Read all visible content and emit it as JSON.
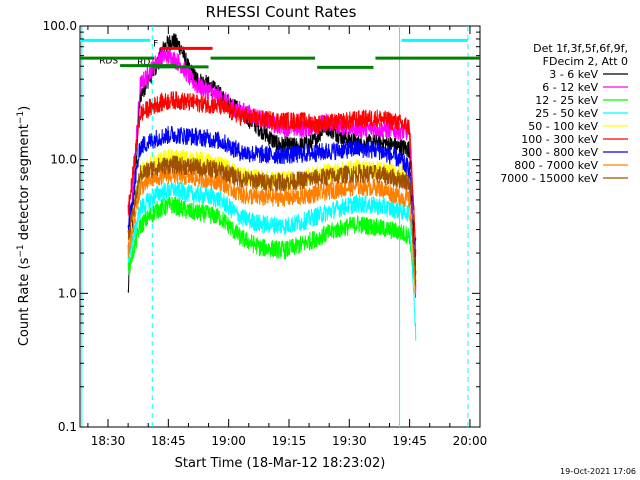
{
  "chart_data": {
    "type": "line",
    "title": "RHESSI Count Rates",
    "xlabel": "Start Time (18-Mar-12 18:23:02)",
    "ylabel_parts": [
      "Count Rate (s",
      "−1",
      " detector segment",
      "−1",
      ")"
    ],
    "y_scale": "log",
    "ylim": [
      0.1,
      100.0
    ],
    "xlim": [
      "18:23:02",
      "20:02:30"
    ],
    "x_ticks": [
      "18:30",
      "18:45",
      "19:00",
      "19:15",
      "19:30",
      "19:45",
      "20:00"
    ],
    "y_ticks": [
      "0.1",
      "1.0",
      "10.0",
      "100.0"
    ],
    "legend_header": [
      "Det 1f,3f,5f,6f,9f,",
      "FDecim 2, Att 0"
    ],
    "legend_position": "right",
    "series": [
      {
        "name": "3 - 6 keV",
        "color": "#000000",
        "x": [
          "18:35:00",
          "18:38:00",
          "18:40:00",
          "18:42:00",
          "18:44:00",
          "18:46:00",
          "18:48:00",
          "18:50:00",
          "18:52:00",
          "18:55:00",
          "18:58:00",
          "19:02:00",
          "19:07:00",
          "19:12:00",
          "19:17:00",
          "19:21:00",
          "19:24:00",
          "19:28:00",
          "19:33:00",
          "19:38:00",
          "19:42:00",
          "19:45:00",
          "19:46:30"
        ],
        "values": [
          1.0,
          30,
          40,
          50,
          70,
          78,
          70,
          48,
          40,
          36,
          30,
          24,
          18,
          13,
          12.5,
          13.5,
          18,
          15,
          13,
          13.5,
          12.5,
          12,
          2.5
        ]
      },
      {
        "name": "6 - 12 keV",
        "color": "#ff00ff",
        "x": [
          "18:35:00",
          "18:38:00",
          "18:40:00",
          "18:42:00",
          "18:44:00",
          "18:46:00",
          "18:48:00",
          "18:50:00",
          "18:52:00",
          "18:55:00",
          "18:58:00",
          "19:02:00",
          "19:07:00",
          "19:12:00",
          "19:17:00",
          "19:21:00",
          "19:24:00",
          "19:28:00",
          "19:33:00",
          "19:38:00",
          "19:42:00",
          "19:45:00",
          "19:46:30"
        ],
        "values": [
          2.0,
          36,
          44,
          54,
          60,
          58,
          52,
          42,
          36,
          33,
          29,
          24,
          21,
          18,
          17,
          17.5,
          19,
          18,
          17,
          17,
          16.5,
          16,
          1.0
        ]
      },
      {
        "name": "12 - 25 keV",
        "color": "#00ff00",
        "x": [
          "18:35:00",
          "18:38:00",
          "18:42:00",
          "18:46:00",
          "18:50:00",
          "18:55:00",
          "18:58:00",
          "19:03:00",
          "19:08:00",
          "19:14:00",
          "19:18:00",
          "19:22:00",
          "19:27:00",
          "19:32:00",
          "19:37:00",
          "19:42:00",
          "19:45:00",
          "19:46:30"
        ],
        "values": [
          1.5,
          3.2,
          4.2,
          4.6,
          4.1,
          3.9,
          3.7,
          2.6,
          2.2,
          2.1,
          2.3,
          2.6,
          3.0,
          3.3,
          3.1,
          2.9,
          2.7,
          1.0
        ]
      },
      {
        "name": "25 - 50 keV",
        "color": "#00ffff",
        "x": [
          "18:35:00",
          "18:38:00",
          "18:42:00",
          "18:46:00",
          "18:50:00",
          "18:55:00",
          "18:58:00",
          "19:03:00",
          "19:08:00",
          "19:14:00",
          "19:18:00",
          "19:22:00",
          "19:27:00",
          "19:32:00",
          "19:37:00",
          "19:42:00",
          "19:45:00",
          "19:46:30"
        ],
        "values": [
          1.8,
          4.3,
          5.5,
          6.0,
          5.6,
          5.3,
          5.0,
          3.7,
          3.3,
          3.2,
          3.4,
          3.8,
          4.3,
          4.7,
          4.5,
          4.2,
          4.0,
          0.5
        ]
      },
      {
        "name": "50 - 100 keV",
        "color": "#ffff00",
        "x": [
          "18:35:00",
          "18:38:00",
          "18:42:00",
          "18:46:00",
          "18:50:00",
          "18:55:00",
          "18:58:00",
          "19:03:00",
          "19:08:00",
          "19:14:00",
          "19:18:00",
          "19:22:00",
          "19:27:00",
          "19:32:00",
          "19:37:00",
          "19:42:00",
          "19:45:00",
          "19:46:30"
        ],
        "values": [
          2.5,
          8.0,
          9.8,
          10.5,
          10.0,
          9.6,
          9.2,
          7.6,
          7.1,
          7.0,
          7.2,
          7.7,
          8.2,
          8.6,
          8.4,
          8.0,
          7.8,
          1.5
        ]
      },
      {
        "name": "100 - 300 keV",
        "color": "#ff0000",
        "x": [
          "18:35:00",
          "18:38:00",
          "18:42:00",
          "18:46:00",
          "18:50:00",
          "18:55:00",
          "18:58:00",
          "19:03:00",
          "19:08:00",
          "19:14:00",
          "19:18:00",
          "19:22:00",
          "19:27:00",
          "19:32:00",
          "19:37:00",
          "19:42:00",
          "19:45:00",
          "19:46:30"
        ],
        "values": [
          4.0,
          22,
          26,
          28,
          27,
          26,
          25,
          21,
          20,
          19.5,
          19.5,
          18.5,
          19,
          20,
          20.5,
          19,
          17.5,
          2.0
        ]
      },
      {
        "name": "300 - 800 keV",
        "color": "#0000ff",
        "x": [
          "18:35:00",
          "18:38:00",
          "18:42:00",
          "18:46:00",
          "18:50:00",
          "18:55:00",
          "18:58:00",
          "19:03:00",
          "19:08:00",
          "19:14:00",
          "19:18:00",
          "19:22:00",
          "19:27:00",
          "19:32:00",
          "19:37:00",
          "19:42:00",
          "19:45:00",
          "19:46:30"
        ],
        "values": [
          3.0,
          12.5,
          14.5,
          15.5,
          15.0,
          14.4,
          13.8,
          11.4,
          10.9,
          10.8,
          11.0,
          11.3,
          11.7,
          12.1,
          11.8,
          10.2,
          8.5,
          1.5
        ]
      },
      {
        "name": "800 - 7000 keV",
        "color": "#ff8000",
        "x": [
          "18:35:00",
          "18:38:00",
          "18:42:00",
          "18:46:00",
          "18:50:00",
          "18:55:00",
          "18:58:00",
          "19:03:00",
          "19:08:00",
          "19:14:00",
          "19:18:00",
          "19:22:00",
          "19:27:00",
          "19:32:00",
          "19:37:00",
          "19:42:00",
          "19:45:00",
          "19:46:30"
        ],
        "values": [
          2.0,
          6.2,
          7.4,
          7.8,
          7.4,
          7.1,
          6.8,
          5.5,
          5.2,
          5.2,
          5.3,
          5.6,
          6.0,
          6.3,
          6.2,
          5.4,
          5.0,
          1.0
        ]
      },
      {
        "name": "7000 - 15000 keV",
        "color": "#a05000",
        "x": [
          "18:35:00",
          "18:38:00",
          "18:42:00",
          "18:46:00",
          "18:50:00",
          "18:55:00",
          "18:58:00",
          "19:03:00",
          "19:08:00",
          "19:14:00",
          "19:18:00",
          "19:22:00",
          "19:27:00",
          "19:32:00",
          "19:37:00",
          "19:42:00",
          "19:45:00",
          "19:46:30"
        ],
        "values": [
          2.5,
          7.8,
          8.8,
          9.2,
          8.9,
          8.6,
          8.3,
          7.2,
          6.9,
          6.8,
          7.0,
          7.3,
          7.6,
          7.9,
          7.8,
          7.2,
          6.8,
          1.2
        ]
      }
    ],
    "bars": [
      {
        "label": "F",
        "color": "#ff0000",
        "segments": [
          [
            "18:43:00",
            "18:56:00"
          ]
        ],
        "y": 68
      },
      {
        "label": "RD",
        "color": "#008000",
        "segments": [
          [
            "18:41:00",
            "18:55:00"
          ]
        ],
        "y": 49.5
      },
      {
        "label": "RDS",
        "color": "#008000",
        "segments": [
          [
            "18:33:00",
            "18:47:00"
          ]
        ],
        "y": 50.5
      },
      {
        "label": "",
        "color": "#008000",
        "segments": [
          [
            "18:23:02",
            "18:41:30"
          ],
          [
            "18:55:30",
            "19:21:30"
          ],
          [
            "19:36:30",
            "20:02:30"
          ]
        ],
        "y": 57.5
      },
      {
        "label": "",
        "color": "#008000",
        "segments": [
          [
            "19:22:00",
            "19:36:00"
          ]
        ],
        "y": 49
      }
    ],
    "vertical_markers": [
      {
        "time": "18:23:30",
        "color": "#00ffff",
        "style": "solid"
      },
      {
        "time": "18:41:00",
        "color": "#00ffff",
        "style": "dashed"
      },
      {
        "time": "19:42:30",
        "color": "#00ffff",
        "style": "solid"
      },
      {
        "time": "19:59:30",
        "color": "#00ffff",
        "style": "dashed"
      }
    ],
    "night_bars": [
      {
        "color": "#00ffff",
        "segments": [
          [
            "18:23:02",
            "18:40:30"
          ],
          [
            "19:43:00",
            "19:59:30"
          ]
        ],
        "y": 78
      }
    ],
    "footer": "19-Oct-2021 17:06"
  }
}
